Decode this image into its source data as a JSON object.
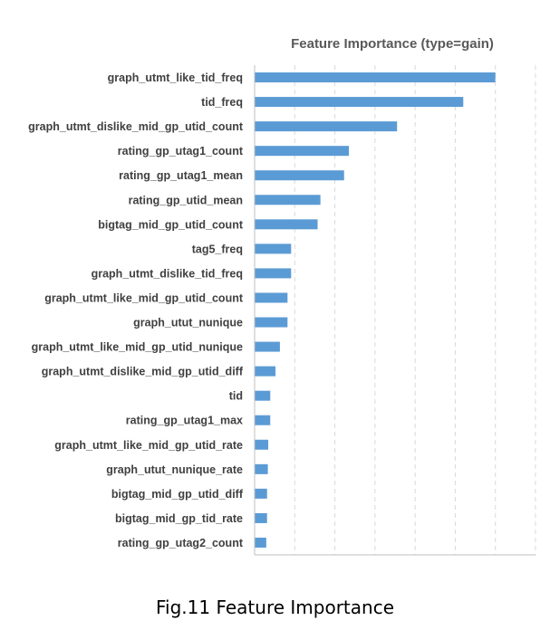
{
  "chart_data": {
    "type": "bar",
    "orientation": "horizontal",
    "title": "Feature Importance (type=gain)",
    "categories": [
      "graph_utmt_like_tid_freq",
      "tid_freq",
      "graph_utmt_dislike_mid_gp_utid_count",
      "rating_gp_utag1_count",
      "rating_gp_utag1_mean",
      "rating_gp_utid_mean",
      "bigtag_mid_gp_utid_count",
      "tag5_freq",
      "graph_utmt_dislike_tid_freq",
      "graph_utmt_like_mid_gp_utid_count",
      "graph_utut_nunique",
      "graph_utmt_like_mid_gp_utid_nunique",
      "graph_utmt_dislike_mid_gp_utid_diff",
      "tid",
      "rating_gp_utag1_max",
      "graph_utmt_like_mid_gp_utid_rate",
      "graph_utut_nunique_rate",
      "bigtag_mid_gp_utid_diff",
      "bigtag_mid_gp_tid_rate",
      "rating_gp_utag2_count"
    ],
    "values": [
      60,
      52,
      35.5,
      23.5,
      22.3,
      16.4,
      15.7,
      9.1,
      9.1,
      8.2,
      8.2,
      6.3,
      5.2,
      3.9,
      3.9,
      3.4,
      3.3,
      3.1,
      3.1,
      2.9
    ],
    "xlim": [
      0,
      70
    ],
    "grid": true,
    "bar_color": "#5b9bd5"
  },
  "caption": "Fig.11 Feature Importance"
}
